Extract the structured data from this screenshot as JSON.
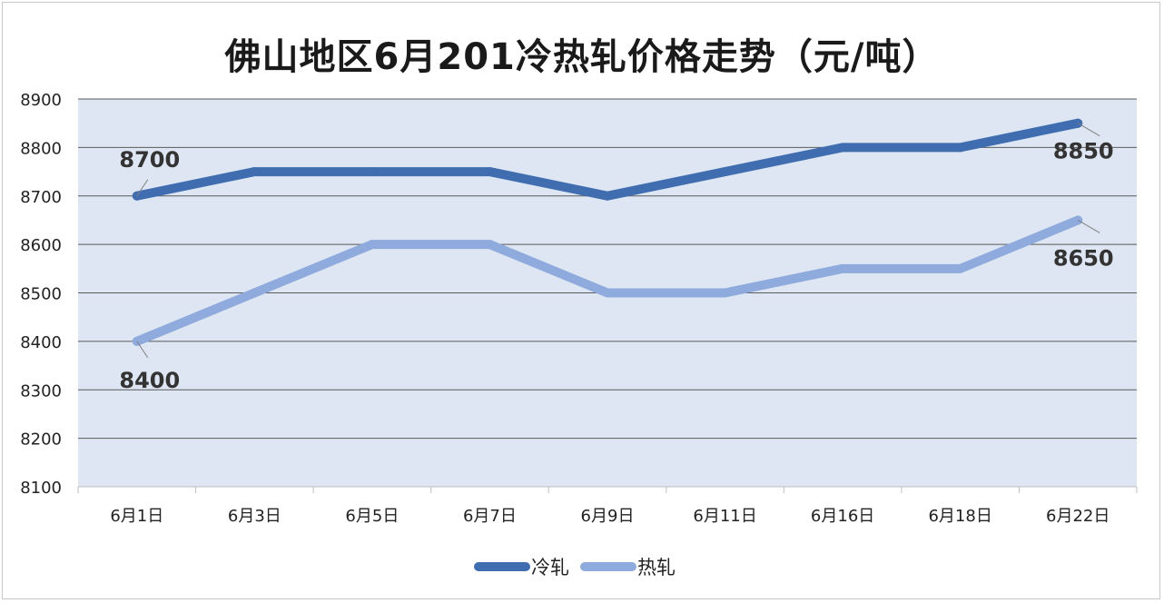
{
  "chart_data": {
    "type": "line",
    "title": "佛山地区6月201冷热轧价格走势（元/吨）",
    "xlabel": "",
    "ylabel": "",
    "categories": [
      "6月1日",
      "6月3日",
      "6月5日",
      "6月7日",
      "6月9日",
      "6月11日",
      "6月16日",
      "6月18日",
      "6月22日"
    ],
    "ylim": [
      8100,
      8900
    ],
    "yticks": [
      8100,
      8200,
      8300,
      8400,
      8500,
      8600,
      8700,
      8800,
      8900
    ],
    "grid": true,
    "legend_position": "bottom",
    "series": [
      {
        "name": "冷轧",
        "color": "#3f6db0",
        "values": [
          8700,
          8750,
          8750,
          8750,
          8700,
          8750,
          8800,
          8800,
          8850
        ]
      },
      {
        "name": "热轧",
        "color": "#8faadc",
        "values": [
          8400,
          8500,
          8600,
          8600,
          8500,
          8500,
          8550,
          8550,
          8650
        ]
      }
    ],
    "annotations": [
      {
        "series": 0,
        "index": 0,
        "text": "8700",
        "position": "above"
      },
      {
        "series": 0,
        "index": 8,
        "text": "8850",
        "position": "below"
      },
      {
        "series": 1,
        "index": 0,
        "text": "8400",
        "position": "below"
      },
      {
        "series": 1,
        "index": 8,
        "text": "8650",
        "position": "below"
      }
    ],
    "plot_background": "#dde6f2"
  }
}
